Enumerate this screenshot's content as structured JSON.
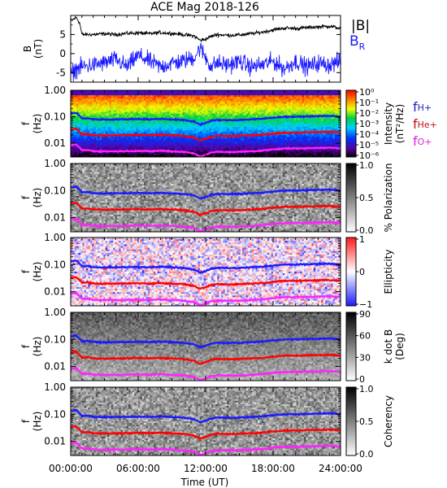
{
  "title": "ACE Mag 2018-126",
  "xlabel": "Time (UT)",
  "xticks": [
    "00:00:00",
    "06:00:00",
    "12:00:00",
    "18:00:00",
    "24:00:00"
  ],
  "colors": {
    "black": "#000000",
    "blue": "#1a1aff",
    "red": "#ff0000",
    "magenta": "#ff22ff"
  },
  "legend": {
    "b_total": "|B|",
    "b_r": "B",
    "b_r_sub": "R"
  },
  "ion_legend": [
    {
      "f": "f",
      "sub": "H+",
      "color": "#2020c0"
    },
    {
      "f": "f",
      "sub": "He+",
      "color": "#c01010"
    },
    {
      "f": "f",
      "sub": "O+",
      "color": "#e020e0"
    }
  ],
  "chart_data": [
    {
      "type": "line",
      "ylabel": "B",
      "yunit": "(nT)",
      "yticks": [
        "5",
        "0",
        "-5"
      ],
      "ylim": [
        -7.5,
        10
      ],
      "x_range_hours": [
        0,
        24
      ],
      "series": [
        {
          "name": "|B|",
          "color": "#000000",
          "x": [
            0,
            0.5,
            0.8,
            1,
            2,
            3,
            4,
            5,
            6,
            7,
            8,
            9,
            10,
            11,
            11.5,
            12,
            12.5,
            13,
            14,
            15,
            16,
            17,
            18,
            19,
            20,
            21,
            22,
            23,
            24
          ],
          "y": [
            8.5,
            9.5,
            8.0,
            5.0,
            5.0,
            5.2,
            5.0,
            5.3,
            5.4,
            5.2,
            5.5,
            5.3,
            5.0,
            4.6,
            3.5,
            3.8,
            4.5,
            5.0,
            4.8,
            4.9,
            5.2,
            5.6,
            6.2,
            6.7,
            6.6,
            6.8,
            7.0,
            7.2,
            6.6
          ]
        },
        {
          "name": "B_R",
          "color": "#1a1aff",
          "x": [
            0,
            0.5,
            1,
            2,
            3,
            4,
            5,
            6,
            7,
            8,
            9,
            10,
            11,
            11.5,
            12,
            12.5,
            13,
            14,
            15,
            16,
            17,
            18,
            19,
            20,
            21,
            22,
            23,
            24
          ],
          "y": [
            -5.5,
            -4.0,
            -3.5,
            -3.0,
            -2.5,
            -1.5,
            -3.5,
            -0.5,
            -2.0,
            -3.5,
            -2.5,
            -2.0,
            -1.0,
            1.5,
            -1.0,
            -3.5,
            -2.5,
            -3.0,
            -2.0,
            -3.5,
            -3.0,
            -2.0,
            -4.0,
            -2.0,
            -3.5,
            -2.5,
            -3.0,
            -2.0
          ]
        }
      ]
    },
    {
      "type": "heatmap",
      "ylabel": "f",
      "yunit": "(Hz)",
      "yscale": "log",
      "ylim": [
        0.003,
        1.0
      ],
      "yticks": [
        "1.00",
        "0.10",
        "0.01"
      ],
      "colorbar": {
        "label": "Intensity",
        "unit": "(nT²/Hz)",
        "ticks": [
          "10⁰",
          "10⁻¹",
          "10⁻²",
          "10⁻³",
          "10⁻⁴",
          "10⁻⁵",
          "10⁻⁶"
        ],
        "range": [
          -6,
          0
        ],
        "colormap": "rainbow"
      },
      "overlays": "gyrofrequency"
    },
    {
      "type": "heatmap",
      "ylabel": "f",
      "yunit": "(Hz)",
      "yscale": "log",
      "ylim": [
        0.003,
        1.0
      ],
      "yticks": [
        "1.00",
        "0.10",
        "0.01"
      ],
      "colorbar": {
        "label": "% Polarization",
        "unit": "",
        "ticks": [
          "1.0",
          "0.5",
          "0.0"
        ],
        "range": [
          0,
          1
        ],
        "colormap": "gray"
      },
      "overlays": "gyrofrequency"
    },
    {
      "type": "heatmap",
      "ylabel": "f",
      "yunit": "(Hz)",
      "yscale": "log",
      "ylim": [
        0.003,
        1.0
      ],
      "yticks": [
        "1.00",
        "0.10",
        "0.01"
      ],
      "colorbar": {
        "label": "Ellipticity",
        "unit": "",
        "ticks": [
          "1",
          "0",
          "−1"
        ],
        "range": [
          -1,
          1
        ],
        "colormap": "diverging"
      },
      "overlays": "gyrofrequency"
    },
    {
      "type": "heatmap",
      "ylabel": "f",
      "yunit": "(Hz)",
      "yscale": "log",
      "ylim": [
        0.003,
        1.0
      ],
      "yticks": [
        "1.00",
        "0.10",
        "0.01"
      ],
      "colorbar": {
        "label": "k dot B",
        "unit": "(Deg)",
        "ticks": [
          "90",
          "60",
          "30",
          "0"
        ],
        "range": [
          0,
          90
        ],
        "colormap": "gray"
      },
      "overlays": "gyrofrequency"
    },
    {
      "type": "heatmap",
      "ylabel": "f",
      "yunit": "(Hz)",
      "yscale": "log",
      "ylim": [
        0.003,
        1.0
      ],
      "yticks": [
        "1.00",
        "0.10",
        "0.01"
      ],
      "colorbar": {
        "label": "Coherency",
        "unit": "",
        "ticks": [
          "1.0",
          "0.5",
          "0.0"
        ],
        "range": [
          0,
          1
        ],
        "colormap": "gray"
      },
      "overlays": "gyrofrequency"
    }
  ],
  "gyrofrequency_hz": {
    "x_hours": [
      0,
      0.5,
      1,
      1.5,
      2,
      3,
      4,
      5,
      6,
      7,
      8,
      9,
      10,
      11,
      11.5,
      12,
      12.5,
      13,
      14,
      15,
      16,
      17,
      18,
      19,
      20,
      21,
      22,
      23,
      24
    ],
    "f_H": [
      0.135,
      0.14,
      0.085,
      0.088,
      0.08,
      0.078,
      0.079,
      0.08,
      0.082,
      0.079,
      0.083,
      0.079,
      0.075,
      0.065,
      0.05,
      0.058,
      0.07,
      0.075,
      0.074,
      0.075,
      0.079,
      0.083,
      0.092,
      0.1,
      0.1,
      0.103,
      0.105,
      0.108,
      0.1
    ],
    "f_He": [
      0.034,
      0.035,
      0.021,
      0.022,
      0.02,
      0.0195,
      0.0198,
      0.02,
      0.0205,
      0.0198,
      0.0208,
      0.0198,
      0.019,
      0.0162,
      0.0125,
      0.0145,
      0.0175,
      0.019,
      0.0185,
      0.019,
      0.0198,
      0.0208,
      0.023,
      0.025,
      0.025,
      0.026,
      0.0263,
      0.027,
      0.025
    ],
    "f_O": [
      0.0085,
      0.0088,
      0.0053,
      0.0055,
      0.005,
      0.0049,
      0.0049,
      0.005,
      0.0051,
      0.0049,
      0.0052,
      0.0049,
      0.0047,
      0.0041,
      0.0031,
      0.0036,
      0.0044,
      0.0047,
      0.0046,
      0.0047,
      0.0049,
      0.0052,
      0.0058,
      0.0063,
      0.0063,
      0.0064,
      0.0066,
      0.0068,
      0.0063
    ]
  }
}
